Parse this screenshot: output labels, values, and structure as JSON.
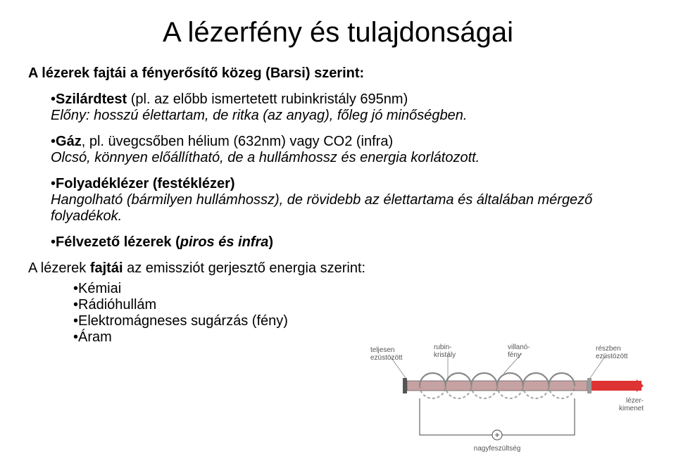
{
  "title": "A lézerfény és tulajdonságai",
  "subtitle": "A lézerek fajtái a fényerősítő közeg (Barsi) szerint:",
  "items": [
    {
      "head_prefix": "•",
      "head_main": "Szilárdtest",
      "head_tail": "  (pl. az előbb ismertetett rubinkristály 695nm)",
      "desc": "Előny: hosszú élettartam, de ritka (az anyag), főleg jó minőségben."
    },
    {
      "head_prefix": "•",
      "head_main": "Gáz",
      "head_tail": ", pl. üvegcsőben hélium (632nm)  vagy CO2 (infra)",
      "desc": "Olcsó, könnyen előállítható, de a hullámhossz és energia korlátozott."
    },
    {
      "head_prefix": "•",
      "head_main": "Folyadéklézer (festéklézer)",
      "head_tail": "",
      "desc": "Hangolható (bármilyen hullámhossz), de rövidebb az élettartama és általában mérgező folyadékok."
    },
    {
      "head_prefix": "•",
      "head_main": "Félvezető lézerek (",
      "head_bi": "piros és infra",
      "head_tail2": ")",
      "desc": ""
    }
  ],
  "subtitle2_pre": "A lézerek ",
  "subtitle2_bold": "fajtái",
  "subtitle2_post": " az emissziót gerjesztő energia szerint:",
  "sublist": [
    "•Kémiai",
    "•Rádióhullám",
    "•Elektromágneses sugárzás (fény)",
    "•Áram"
  ],
  "diagram": {
    "labels": {
      "left": "teljesen ezüstözött",
      "ruby": "rubin-kristály",
      "flash": "villanó-fény",
      "right": "részben ezüstözött",
      "out": "lézer-kimenet",
      "voltage": "nagyfeszültség"
    },
    "colors": {
      "mirror": "#555555",
      "ruby": "#c7a2a2",
      "coil": "#888888",
      "laser": "#d33",
      "text": "#555555",
      "line": "#444444"
    },
    "font_size": 10
  }
}
